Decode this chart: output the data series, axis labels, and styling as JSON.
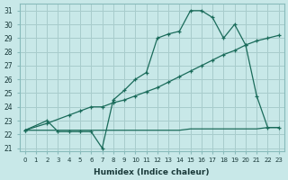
{
  "xlabel": "Humidex (Indice chaleur)",
  "bg_color": "#c8e8e8",
  "grid_color": "#a8cccc",
  "line_color": "#1a6b5a",
  "xlim": [
    -0.5,
    23.5
  ],
  "ylim": [
    20.8,
    31.5
  ],
  "xticks": [
    0,
    1,
    2,
    3,
    4,
    5,
    6,
    7,
    8,
    9,
    10,
    11,
    12,
    13,
    14,
    15,
    16,
    17,
    18,
    19,
    20,
    21,
    22,
    23
  ],
  "yticks": [
    21,
    22,
    23,
    24,
    25,
    26,
    27,
    28,
    29,
    30,
    31
  ],
  "flat_x": [
    0,
    1,
    2,
    3,
    4,
    5,
    6,
    7,
    8,
    9,
    10,
    11,
    12,
    13,
    14,
    15,
    16,
    17,
    18,
    19,
    20,
    21,
    22,
    23
  ],
  "flat_y": [
    22.3,
    22.3,
    22.3,
    22.3,
    22.3,
    22.3,
    22.3,
    22.3,
    22.3,
    22.3,
    22.3,
    22.3,
    22.3,
    22.3,
    22.3,
    22.4,
    22.4,
    22.4,
    22.4,
    22.4,
    22.4,
    22.4,
    22.5,
    22.5
  ],
  "diag_x": [
    0,
    2,
    4,
    5,
    6,
    7,
    8,
    9,
    10,
    11,
    12,
    13,
    14,
    15,
    16,
    17,
    18,
    19,
    20,
    21,
    22,
    23
  ],
  "diag_y": [
    22.3,
    22.8,
    23.4,
    23.7,
    24.0,
    24.0,
    24.3,
    24.5,
    24.8,
    25.1,
    25.4,
    25.8,
    26.2,
    26.6,
    27.0,
    27.4,
    27.8,
    28.1,
    28.5,
    28.8,
    29.0,
    29.2
  ],
  "curve_x": [
    0,
    2,
    3,
    4,
    5,
    6,
    7,
    8,
    9,
    10,
    11,
    12,
    13,
    14,
    15,
    16,
    17,
    18,
    19,
    20,
    21,
    22,
    23
  ],
  "curve_y": [
    22.3,
    23.0,
    22.2,
    22.2,
    22.2,
    22.2,
    21.0,
    24.5,
    25.2,
    26.0,
    26.5,
    29.0,
    29.3,
    29.5,
    31.0,
    31.0,
    30.5,
    29.0,
    30.0,
    28.5,
    24.8,
    22.5,
    22.5
  ]
}
